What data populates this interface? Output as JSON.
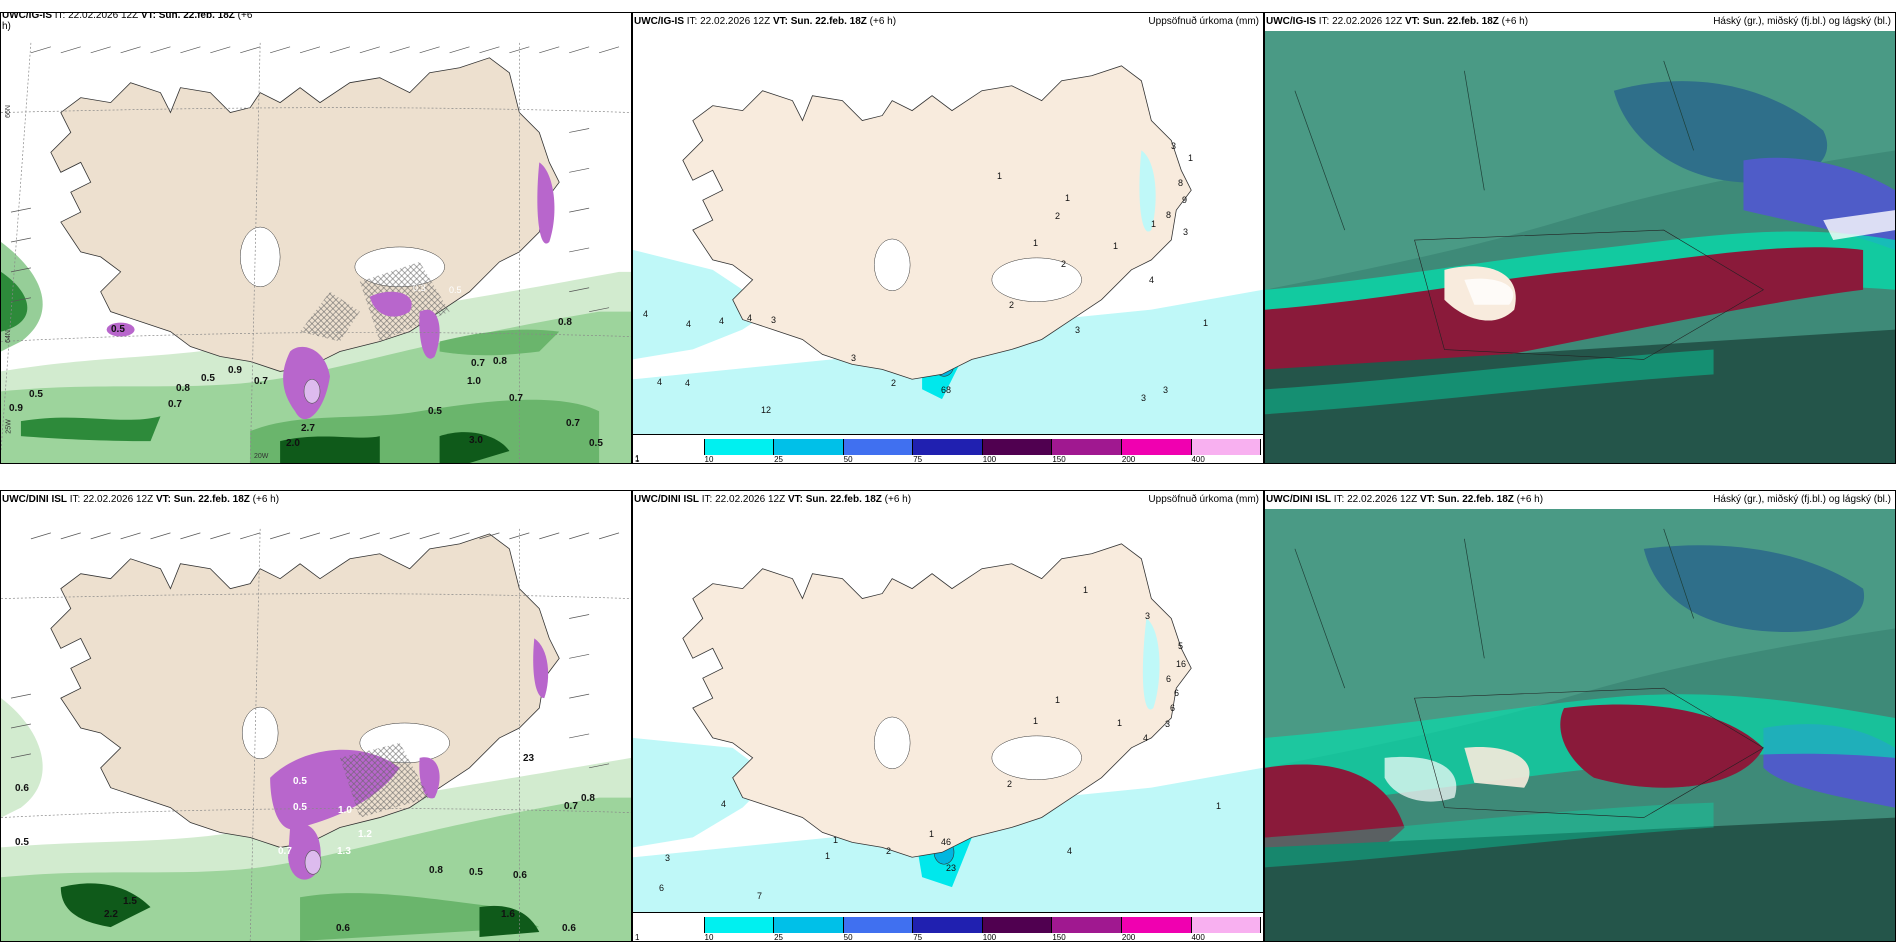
{
  "colors": {
    "land": "#f8ebdd",
    "land_wind": "#ede0cf",
    "sea": "#ffffff",
    "precip_light": "#bff8f8",
    "precip_cyan": "#00e8ec",
    "precip_mid": "#00b6e0",
    "purple": "#b866cc",
    "magenta_dark": "#8a2288",
    "green_light": "#d2ebcf",
    "green": "#7cc27e",
    "green_dark": "#0f5a1a",
    "cloud_teal": "#3e8a78",
    "cloud_dark": "#24554a",
    "cloud_red": "#8a1a3a",
    "cloud_cyan": "#00e6b0",
    "cloud_blue": "#4f5cc8"
  },
  "panels": {
    "p1": {
      "model": "UWC/IG-IS",
      "it": "IT: 22.02.2026 12Z",
      "vt_label": "VT:",
      "vt": "Sun. 22.feb. 18Z",
      "lead": "(+6",
      "lead2": "h)",
      "right": ""
    },
    "p2": {
      "model": "UWC/IG-IS",
      "it": "IT: 22.02.2026 12Z",
      "vt_label": "VT:",
      "vt": "Sun. 22.feb. 18Z",
      "lead": "(+6 h)",
      "right": "Uppsöfnuð úrkoma (mm)"
    },
    "p3": {
      "model": "UWC/IG-IS",
      "it": "IT: 22.02.2026 12Z",
      "vt_label": "VT:",
      "vt": "Sun. 22.feb. 18Z",
      "lead": "(+6 h)",
      "right": "Háský (gr.), miðský (fj.bl.) og lágský (bl.)"
    },
    "p4": {
      "model": "UWC/DINI ISL",
      "it": "IT: 22.02.2026 12Z",
      "vt_label": "VT:",
      "vt": "Sun. 22.feb. 18Z",
      "lead": "(+6 h)",
      "right": ""
    },
    "p5": {
      "model": "UWC/DINI ISL",
      "it": "IT: 22.02.2026 12Z",
      "vt_label": "VT:",
      "vt": "Sun. 22.feb. 18Z",
      "lead": "(+6 h)",
      "right": "Uppsöfnuð úrkoma (mm)"
    },
    "p6": {
      "model": "UWC/DINI ISL",
      "it": "IT: 22.02.2026 12Z",
      "vt_label": "VT:",
      "vt": "Sun. 22.feb. 18Z",
      "lead": "(+6 h)",
      "right": "Háský (gr.), miðský (fj.bl.) og lágský (bl.)"
    }
  },
  "legend": {
    "ticks": [
      "1",
      "10",
      "25",
      "50",
      "75",
      "100",
      "150",
      "200",
      "400"
    ],
    "colors": [
      "#ffffff",
      "#00f0f0",
      "#00c0e8",
      "#4070f0",
      "#2020b0",
      "#500050",
      "#a01890",
      "#f000b0",
      "#f8b0f0"
    ]
  },
  "axis": {
    "lat66": "66N",
    "lat64": "64N",
    "lon20": "20W",
    "lon23": "23W",
    "lon25": "25W"
  },
  "labels": {
    "p1": [
      "0.9",
      "0.5",
      "0.8",
      "0.7",
      "0.5",
      "0.9",
      "0.7",
      "0.7",
      "2.7",
      "2.0",
      "0.5",
      "3.0",
      "0.8",
      "0.7",
      "0.5",
      "1.0",
      "0.8",
      "0.7",
      "0.5",
      "0.3",
      "0.5"
    ],
    "p2": [
      "4",
      "4",
      "4",
      "4",
      "3",
      "4",
      "4",
      "12",
      "3",
      "2",
      "1",
      "1",
      "2",
      "1",
      "2",
      "2",
      "1",
      "1",
      "4",
      "3",
      "3",
      "8",
      "9",
      "8",
      "3",
      "1",
      "3",
      "3",
      "1",
      "68"
    ],
    "p4": [
      "0.6",
      "0.5",
      "2.2",
      "1.5",
      "1.3",
      "1.0",
      "0.5",
      "1.2",
      "0.8",
      "0.5",
      "0.6",
      "0.8",
      "0.7",
      "1.6",
      "0.6",
      "0.6",
      "23",
      "0.5",
      "0.7"
    ],
    "p5": [
      "4",
      "3",
      "6",
      "7",
      "1",
      "1",
      "2",
      "1",
      "2",
      "1",
      "1",
      "1",
      "1",
      "3",
      "5",
      "16",
      "6",
      "6",
      "6",
      "3",
      "4",
      "23",
      "46",
      "4",
      "1"
    ]
  }
}
